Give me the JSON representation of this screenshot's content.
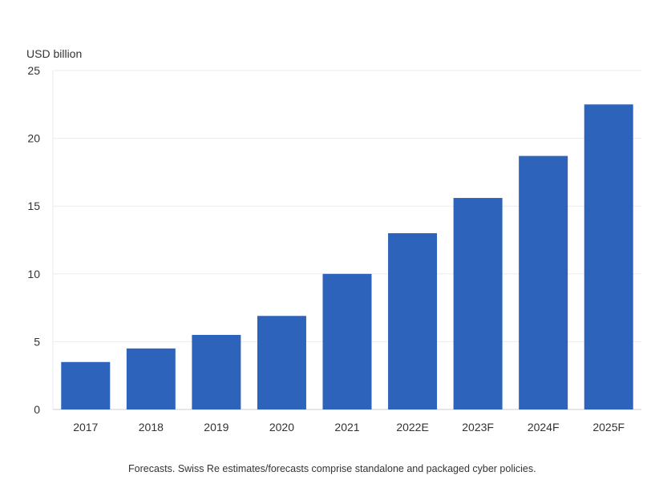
{
  "chart_data": {
    "type": "bar",
    "ylabel": "USD billion",
    "categories": [
      "2017",
      "2018",
      "2019",
      "2020",
      "2021",
      "2022E",
      "2023F",
      "2024F",
      "2025F"
    ],
    "values": [
      3.5,
      4.5,
      5.5,
      6.9,
      10.0,
      13.0,
      15.6,
      18.7,
      22.5
    ],
    "ylim": [
      0,
      25
    ],
    "yticks": [
      0,
      5,
      10,
      15,
      20,
      25
    ],
    "grid": true,
    "bar_color": "#2d63bb"
  },
  "footnote": "Forecasts. Swiss Re estimates/forecasts comprise standalone and packaged cyber policies."
}
